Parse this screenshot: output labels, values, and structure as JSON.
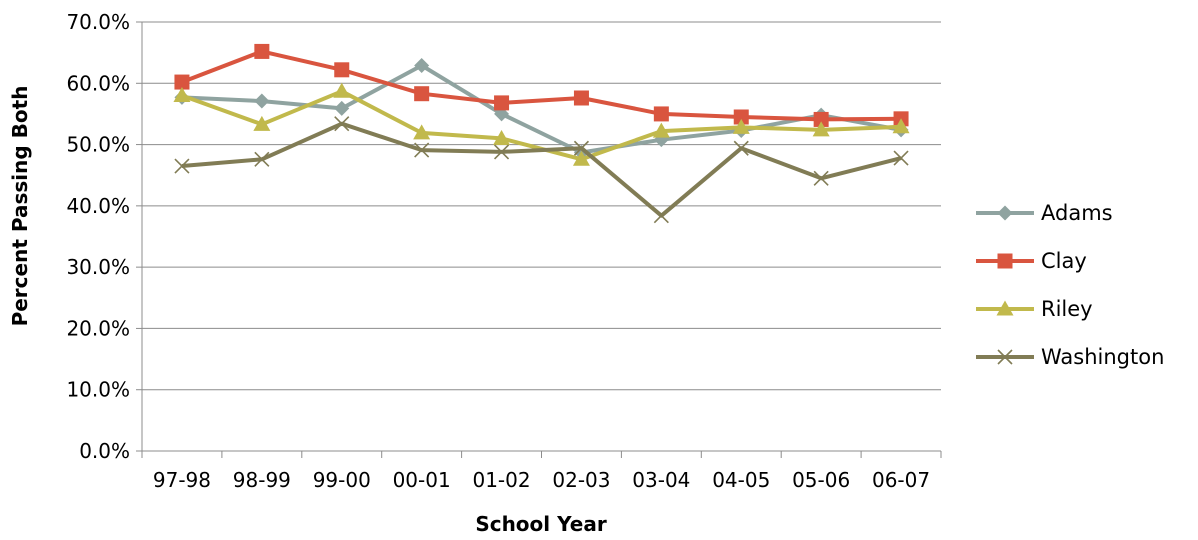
{
  "chart_data": {
    "type": "line",
    "title": "",
    "xlabel": "School Year",
    "ylabel": "Percent Passing Both",
    "categories": [
      "97-98",
      "98-99",
      "99-00",
      "00-01",
      "01-02",
      "02-03",
      "03-04",
      "04-05",
      "05-06",
      "06-07"
    ],
    "y_ticks": [
      "0.0%",
      "10.0%",
      "20.0%",
      "30.0%",
      "40.0%",
      "50.0%",
      "60.0%",
      "70.0%"
    ],
    "ylim": [
      0,
      70
    ],
    "grid": true,
    "legend_position": "right",
    "series": [
      {
        "name": "Adams",
        "color": "#8FA3A0",
        "marker": "diamond",
        "values": [
          57.7,
          57.1,
          55.9,
          62.9,
          55.0,
          48.7,
          50.8,
          52.3,
          54.8,
          52.4
        ]
      },
      {
        "name": "Clay",
        "color": "#D9553F",
        "marker": "square",
        "values": [
          60.2,
          65.2,
          62.2,
          58.3,
          56.8,
          57.6,
          55.0,
          54.5,
          54.1,
          54.2
        ]
      },
      {
        "name": "Riley",
        "color": "#C1B94C",
        "marker": "triangle",
        "values": [
          58.0,
          53.3,
          58.7,
          51.9,
          51.0,
          47.6,
          52.2,
          52.8,
          52.4,
          52.9
        ]
      },
      {
        "name": "Washington",
        "color": "#817C55",
        "marker": "x",
        "values": [
          46.5,
          47.6,
          53.4,
          49.1,
          48.8,
          49.4,
          38.4,
          49.4,
          44.5,
          47.8
        ]
      }
    ]
  }
}
